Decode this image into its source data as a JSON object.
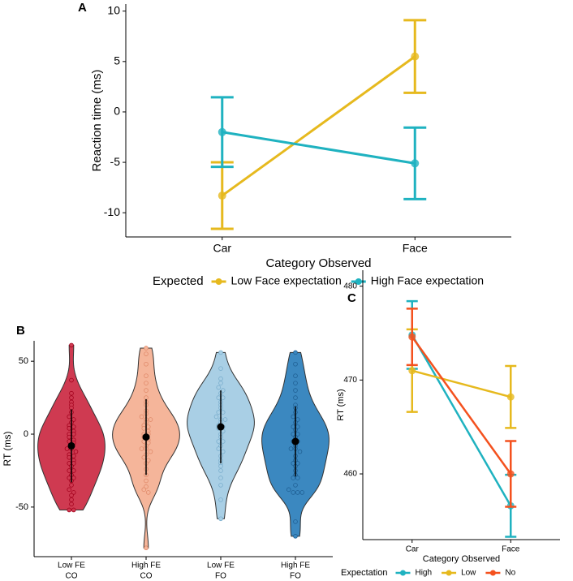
{
  "chart_data": [
    {
      "type": "line",
      "panel_label": "A",
      "xlabel": "Category Observed",
      "ylabel": "Reaction time (ms)",
      "categories": [
        "Car",
        "Face"
      ],
      "ylim": [
        -12.4,
        10.7
      ],
      "yticks": [
        -10,
        -5,
        0,
        5,
        10
      ],
      "legend_title": "Expected",
      "legend": "bottom",
      "series": [
        {
          "name": "Low Face expectation",
          "color": "#e6b91e",
          "values": [
            -8.3,
            5.5
          ],
          "errors": [
            3.3,
            3.6
          ]
        },
        {
          "name": "High Face expectation",
          "color": "#1fb2c0",
          "values": [
            -2.0,
            -5.1
          ],
          "errors": [
            3.45,
            3.55
          ]
        }
      ]
    },
    {
      "type": "violin",
      "panel_label": "B",
      "ylabel": "RT (ms)",
      "categories": [
        [
          "Low FE",
          "CO"
        ],
        [
          "High FE",
          "CO"
        ],
        [
          "Low FE",
          "FO"
        ],
        [
          "High FE",
          "FO"
        ]
      ],
      "ylim": [
        -84,
        64
      ],
      "yticks": [
        -50,
        0,
        50
      ],
      "colors": [
        "#cf3a51",
        "#f5b59a",
        "#a9cfe5",
        "#3b88c0"
      ],
      "dot_colors": [
        "#a3001c",
        "#e08a6a",
        "#7aaecd",
        "#1f5f93"
      ],
      "means": [
        -8,
        -2,
        5,
        -5
      ],
      "sd": [
        25,
        26,
        25,
        24
      ],
      "points": [
        [
          61,
          37,
          28,
          25,
          22,
          20,
          18,
          15,
          12,
          10,
          8,
          6,
          5,
          4,
          2,
          0,
          0,
          -2,
          -4,
          -5,
          -6,
          -8,
          -10,
          -10,
          -12,
          -14,
          -15,
          -16,
          -18,
          -20,
          -20,
          -22,
          -25,
          -25,
          -28,
          -30,
          -30,
          -32,
          -35,
          -38,
          -40,
          -42,
          -45,
          -48,
          -52,
          -52
        ],
        [
          59,
          55,
          48,
          40,
          35,
          30,
          25,
          22,
          20,
          16,
          14,
          12,
          10,
          10,
          8,
          6,
          5,
          4,
          2,
          0,
          0,
          -2,
          -4,
          -5,
          -6,
          -8,
          -10,
          -10,
          -12,
          -14,
          -16,
          -18,
          -20,
          -24,
          -28,
          -32,
          -36,
          -38,
          -40,
          -78
        ],
        [
          56,
          45,
          38,
          35,
          32,
          30,
          28,
          25,
          25,
          22,
          20,
          18,
          15,
          15,
          12,
          10,
          10,
          8,
          6,
          5,
          4,
          2,
          0,
          -2,
          -5,
          -5,
          -8,
          -10,
          -12,
          -15,
          -18,
          -20,
          -22,
          -25,
          -30,
          -35,
          -45,
          -58
        ],
        [
          56,
          48,
          40,
          35,
          30,
          25,
          20,
          18,
          15,
          12,
          10,
          8,
          5,
          5,
          3,
          0,
          0,
          -2,
          -5,
          -5,
          -8,
          -10,
          -10,
          -12,
          -15,
          -18,
          -20,
          -20,
          -22,
          -25,
          -28,
          -30,
          -30,
          -35,
          -38,
          -40,
          -40,
          -40,
          -60,
          -70
        ]
      ]
    },
    {
      "type": "line",
      "panel_label": "C",
      "xlabel": "Category Observed",
      "ylabel": "RT (ms)",
      "categories": [
        "Car",
        "Face"
      ],
      "ylim": [
        453,
        481.7
      ],
      "yticks": [
        460,
        470,
        480
      ],
      "legend_title": "Expectation",
      "legend": "bottom",
      "series": [
        {
          "name": "High",
          "color": "#1fb2c0",
          "values": [
            474.8,
            456.6
          ],
          "errors": [
            3.6,
            3.3
          ]
        },
        {
          "name": "Low",
          "color": "#e6b91e",
          "values": [
            471.0,
            468.2
          ],
          "errors": [
            4.4,
            3.3
          ]
        },
        {
          "name": "No",
          "color": "#f4511e",
          "values": [
            474.6,
            460.0
          ],
          "errors": [
            3.0,
            3.5
          ]
        }
      ]
    }
  ]
}
